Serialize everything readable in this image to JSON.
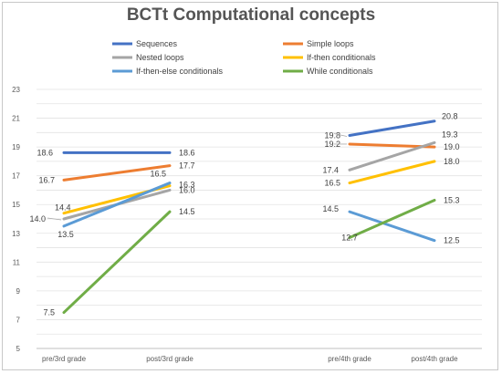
{
  "chart_data": {
    "type": "line",
    "title": "BCTt Computational concepts",
    "categories": [
      "pre/3rd grade",
      "post/3rd grade",
      "pre/4th grade",
      "post/4th grade"
    ],
    "ylim": [
      5,
      23
    ],
    "yticks": [
      5,
      7,
      9,
      11,
      13,
      15,
      17,
      19,
      21,
      23
    ],
    "grid": true,
    "legend_position": "top",
    "series": [
      {
        "name": "Sequences",
        "color": "#4472C4",
        "values": [
          18.6,
          18.6,
          19.8,
          20.8
        ],
        "labels": [
          "18.6",
          "18.6",
          "19.8",
          "20.8"
        ]
      },
      {
        "name": "Simple loops",
        "color": "#ED7D31",
        "values": [
          16.7,
          17.7,
          19.2,
          19.0
        ],
        "labels": [
          "16.7",
          "17.7",
          "19.2",
          "19.0"
        ]
      },
      {
        "name": "Nested loops",
        "color": "#A5A5A5",
        "values": [
          14.0,
          16.0,
          17.4,
          19.3
        ],
        "labels": [
          "14.0",
          "16.0",
          "17.4",
          "19.3"
        ]
      },
      {
        "name": "If-then conditionals",
        "color": "#FFC000",
        "values": [
          14.4,
          16.3,
          16.5,
          18.0
        ],
        "labels": [
          "14.4",
          "16.3",
          "16.5",
          "18.0"
        ]
      },
      {
        "name": "If-then-else conditionals",
        "color": "#5B9BD5",
        "values": [
          13.5,
          16.5,
          14.5,
          12.5
        ],
        "labels": [
          "13.5",
          "16.5",
          "14.5",
          "12.5"
        ]
      },
      {
        "name": "While conditionals",
        "color": "#70AD47",
        "values": [
          7.5,
          14.5,
          12.7,
          15.3
        ],
        "labels": [
          "7.5",
          "14.5",
          "12.7",
          "15.3"
        ]
      }
    ]
  }
}
